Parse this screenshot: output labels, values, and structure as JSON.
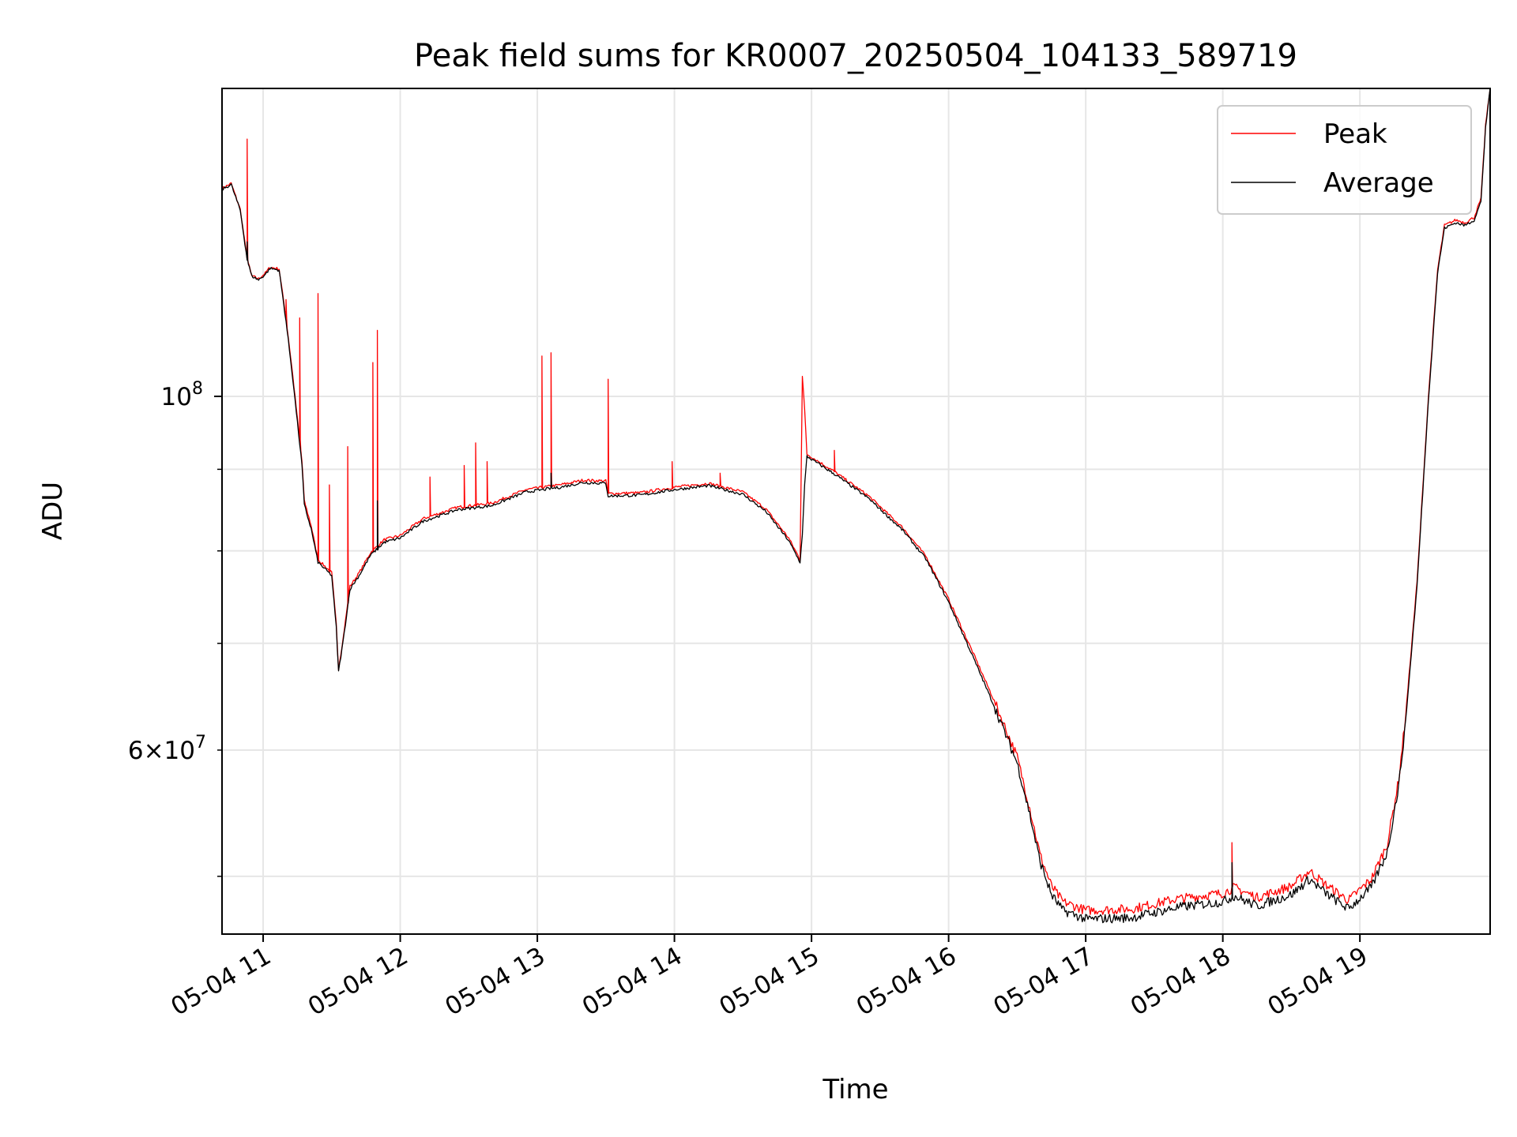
{
  "chart_data": {
    "type": "line",
    "title": "Peak field sums for KR0007_20250504_104133_589719",
    "xlabel": "Time",
    "ylabel": "ADU",
    "x_axis": {
      "kind": "datetime",
      "range": [
        "2025-05-04 10:42",
        "2025-05-04 19:57"
      ],
      "ticks": [
        "05-04 11",
        "05-04 12",
        "05-04 13",
        "05-04 14",
        "05-04 15",
        "05-04 16",
        "05-04 17",
        "05-04 18",
        "05-04 19"
      ]
    },
    "y_axis": {
      "scale": "log",
      "range": [
        46000000,
        156000000
      ],
      "major_ticks": [
        {
          "value": 100000000,
          "label": "10^8"
        }
      ],
      "minor_tick_labels": [
        {
          "value": 60000000,
          "label": "6 × 10^7"
        }
      ],
      "minor_ticks": [
        50000000,
        60000000,
        70000000,
        80000000,
        90000000
      ]
    },
    "grid": true,
    "legend_position": "top-right",
    "series": [
      {
        "name": "Peak",
        "color": "#ff0000",
        "points": [
          [
            "2025-05-04 10:42",
            135000000
          ],
          [
            "2025-05-04 10:46",
            136000000
          ],
          [
            "2025-05-04 10:50",
            131000000
          ],
          [
            "2025-05-04 10:53",
            122000000
          ],
          [
            "2025-05-04 10:55",
            119000000
          ],
          [
            "2025-05-04 10:58",
            118500000
          ],
          [
            "2025-05-04 11:01",
            119500000
          ],
          [
            "2025-05-04 11:03",
            120500000
          ],
          [
            "2025-05-04 11:07",
            120200000
          ],
          [
            "2025-05-04 11:10",
            112000000
          ],
          [
            "2025-05-04 11:13",
            103000000
          ],
          [
            "2025-05-04 11:17",
            91000000
          ],
          [
            "2025-05-04 11:18",
            86000000
          ],
          [
            "2025-05-04 11:21",
            83000000
          ],
          [
            "2025-05-04 11:24",
            79000000
          ],
          [
            "2025-05-04 11:28",
            78000000
          ],
          [
            "2025-05-04 11:30",
            77500000
          ],
          [
            "2025-05-04 11:32",
            72000000
          ],
          [
            "2025-05-04 11:33",
            67500000
          ],
          [
            "2025-05-04 11:35",
            70500000
          ],
          [
            "2025-05-04 11:38",
            76000000
          ],
          [
            "2025-05-04 11:42",
            77500000
          ],
          [
            "2025-05-04 11:47",
            79800000
          ],
          [
            "2025-05-04 11:53",
            81300000
          ],
          [
            "2025-05-04 12:00",
            81800000
          ],
          [
            "2025-05-04 12:10",
            83800000
          ],
          [
            "2025-05-04 12:25",
            85200000
          ],
          [
            "2025-05-04 12:40",
            85700000
          ],
          [
            "2025-05-04 12:55",
            87400000
          ],
          [
            "2025-05-04 13:10",
            88000000
          ],
          [
            "2025-05-04 13:20",
            88600000
          ],
          [
            "2025-05-04 13:30",
            88500000
          ],
          [
            "2025-05-04 13:31",
            86900000
          ],
          [
            "2025-05-04 13:45",
            87000000
          ],
          [
            "2025-05-04 14:00",
            87700000
          ],
          [
            "2025-05-04 14:15",
            88200000
          ],
          [
            "2025-05-04 14:30",
            87100000
          ],
          [
            "2025-05-04 14:40",
            85000000
          ],
          [
            "2025-05-04 14:50",
            81500000
          ],
          [
            "2025-05-04 14:55",
            79000000
          ],
          [
            "2025-05-04 14:56",
            103000000
          ],
          [
            "2025-05-04 14:57",
            98000000
          ],
          [
            "2025-05-04 14:58",
            92000000
          ],
          [
            "2025-05-04 15:10",
            89700000
          ],
          [
            "2025-05-04 15:25",
            86600000
          ],
          [
            "2025-05-04 15:40",
            82700000
          ],
          [
            "2025-05-04 15:50",
            79400000
          ],
          [
            "2025-05-04 16:00",
            74600000
          ],
          [
            "2025-05-04 16:10",
            69400000
          ],
          [
            "2025-05-04 16:20",
            64400000
          ],
          [
            "2025-05-04 16:30",
            59400000
          ],
          [
            "2025-05-04 16:35",
            55600000
          ],
          [
            "2025-05-04 16:40",
            51600000
          ],
          [
            "2025-05-04 16:45",
            49300000
          ],
          [
            "2025-05-04 16:50",
            48200000
          ],
          [
            "2025-05-04 17:00",
            47600000
          ],
          [
            "2025-05-04 17:20",
            47700000
          ],
          [
            "2025-05-04 17:40",
            48400000
          ],
          [
            "2025-05-04 18:00",
            48800000
          ],
          [
            "2025-05-04 18:05",
            49200000
          ],
          [
            "2025-05-04 18:15",
            48500000
          ],
          [
            "2025-05-04 18:30",
            49300000
          ],
          [
            "2025-05-04 18:38",
            50400000
          ],
          [
            "2025-05-04 18:45",
            49400000
          ],
          [
            "2025-05-04 18:55",
            48300000
          ],
          [
            "2025-05-04 19:05",
            49800000
          ],
          [
            "2025-05-04 19:12",
            52400000
          ],
          [
            "2025-05-04 19:17",
            57500000
          ],
          [
            "2025-05-04 19:20",
            63000000
          ],
          [
            "2025-05-04 19:25",
            76500000
          ],
          [
            "2025-05-04 19:30",
            100000000
          ],
          [
            "2025-05-04 19:34",
            120000000
          ],
          [
            "2025-05-04 19:37",
            128000000
          ],
          [
            "2025-05-04 19:42",
            129000000
          ],
          [
            "2025-05-04 19:46",
            128500000
          ],
          [
            "2025-05-04 19:50",
            129500000
          ],
          [
            "2025-05-04 19:53",
            133000000
          ],
          [
            "2025-05-04 19:55",
            148000000
          ],
          [
            "2025-05-04 19:57",
            156000000
          ]
        ],
        "spikes": [
          [
            "2025-05-04 10:53",
            145000000
          ],
          [
            "2025-05-04 11:10",
            115000000
          ],
          [
            "2025-05-04 11:16",
            112000000
          ],
          [
            "2025-05-04 11:24",
            116000000
          ],
          [
            "2025-05-04 11:29",
            88000000
          ],
          [
            "2025-05-04 11:37",
            93000000
          ],
          [
            "2025-05-04 11:48",
            105000000
          ],
          [
            "2025-05-04 11:50",
            110000000
          ],
          [
            "2025-05-04 12:13",
            89000000
          ],
          [
            "2025-05-04 12:28",
            90500000
          ],
          [
            "2025-05-04 12:33",
            93500000
          ],
          [
            "2025-05-04 12:38",
            91000000
          ],
          [
            "2025-05-04 13:02",
            106000000
          ],
          [
            "2025-05-04 13:06",
            106500000
          ],
          [
            "2025-05-04 13:31",
            102500000
          ],
          [
            "2025-05-04 13:59",
            91000000
          ],
          [
            "2025-05-04 14:20",
            89500000
          ],
          [
            "2025-05-04 15:10",
            92500000
          ],
          [
            "2025-05-04 18:04",
            52500000
          ]
        ]
      },
      {
        "name": "Average",
        "color": "#000000",
        "points": [
          [
            "2025-05-04 10:42",
            134800000
          ],
          [
            "2025-05-04 10:46",
            135800000
          ],
          [
            "2025-05-04 10:50",
            130800000
          ],
          [
            "2025-05-04 10:53",
            121800000
          ],
          [
            "2025-05-04 10:55",
            119000000
          ],
          [
            "2025-05-04 10:58",
            118300000
          ],
          [
            "2025-05-04 11:01",
            119300000
          ],
          [
            "2025-05-04 11:03",
            120300000
          ],
          [
            "2025-05-04 11:07",
            120000000
          ],
          [
            "2025-05-04 11:10",
            111500000
          ],
          [
            "2025-05-04 11:13",
            102500000
          ],
          [
            "2025-05-04 11:17",
            90500000
          ],
          [
            "2025-05-04 11:18",
            85500000
          ],
          [
            "2025-05-04 11:21",
            82600000
          ],
          [
            "2025-05-04 11:24",
            78700000
          ],
          [
            "2025-05-04 11:28",
            77700000
          ],
          [
            "2025-05-04 11:30",
            77200000
          ],
          [
            "2025-05-04 11:32",
            71600000
          ],
          [
            "2025-05-04 11:33",
            67200000
          ],
          [
            "2025-05-04 11:35",
            70200000
          ],
          [
            "2025-05-04 11:38",
            75700000
          ],
          [
            "2025-05-04 11:42",
            77200000
          ],
          [
            "2025-05-04 11:47",
            79500000
          ],
          [
            "2025-05-04 11:53",
            81000000
          ],
          [
            "2025-05-04 12:00",
            81500000
          ],
          [
            "2025-05-04 12:10",
            83500000
          ],
          [
            "2025-05-04 12:25",
            84900000
          ],
          [
            "2025-05-04 12:40",
            85400000
          ],
          [
            "2025-05-04 12:55",
            87100000
          ],
          [
            "2025-05-04 13:10",
            87700000
          ],
          [
            "2025-05-04 13:20",
            88300000
          ],
          [
            "2025-05-04 13:30",
            88200000
          ],
          [
            "2025-05-04 13:31",
            86600000
          ],
          [
            "2025-05-04 13:45",
            86700000
          ],
          [
            "2025-05-04 14:00",
            87400000
          ],
          [
            "2025-05-04 14:15",
            87900000
          ],
          [
            "2025-05-04 14:30",
            86800000
          ],
          [
            "2025-05-04 14:40",
            84700000
          ],
          [
            "2025-05-04 14:50",
            81200000
          ],
          [
            "2025-05-04 14:55",
            78700000
          ],
          [
            "2025-05-04 14:56",
            82000000
          ],
          [
            "2025-05-04 14:57",
            88000000
          ],
          [
            "2025-05-04 14:58",
            91700000
          ],
          [
            "2025-05-04 15:10",
            89400000
          ],
          [
            "2025-05-04 15:25",
            86300000
          ],
          [
            "2025-05-04 15:40",
            82400000
          ],
          [
            "2025-05-04 15:50",
            79100000
          ],
          [
            "2025-05-04 16:00",
            74300000
          ],
          [
            "2025-05-04 16:10",
            69000000
          ],
          [
            "2025-05-04 16:20",
            63900000
          ],
          [
            "2025-05-04 16:30",
            58900000
          ],
          [
            "2025-05-04 16:35",
            55100000
          ],
          [
            "2025-05-04 16:40",
            51100000
          ],
          [
            "2025-05-04 16:45",
            48700000
          ],
          [
            "2025-05-04 16:50",
            47600000
          ],
          [
            "2025-05-04 17:00",
            47000000
          ],
          [
            "2025-05-04 17:20",
            47100000
          ],
          [
            "2025-05-04 17:40",
            47800000
          ],
          [
            "2025-05-04 18:00",
            48200000
          ],
          [
            "2025-05-04 18:05",
            48600000
          ],
          [
            "2025-05-04 18:15",
            47900000
          ],
          [
            "2025-05-04 18:30",
            48700000
          ],
          [
            "2025-05-04 18:38",
            49800000
          ],
          [
            "2025-05-04 18:45",
            48800000
          ],
          [
            "2025-05-04 18:55",
            47700000
          ],
          [
            "2025-05-04 19:05",
            49200000
          ],
          [
            "2025-05-04 19:12",
            51800000
          ],
          [
            "2025-05-04 19:17",
            57000000
          ],
          [
            "2025-05-04 19:20",
            62500000
          ],
          [
            "2025-05-04 19:25",
            76000000
          ],
          [
            "2025-05-04 19:30",
            99500000
          ],
          [
            "2025-05-04 19:34",
            119500000
          ],
          [
            "2025-05-04 19:37",
            127500000
          ],
          [
            "2025-05-04 19:42",
            128500000
          ],
          [
            "2025-05-04 19:46",
            128000000
          ],
          [
            "2025-05-04 19:50",
            129000000
          ],
          [
            "2025-05-04 19:53",
            132500000
          ],
          [
            "2025-05-04 19:55",
            147500000
          ],
          [
            "2025-05-04 19:57",
            156000000
          ]
        ],
        "spikes": [
          [
            "2025-05-04 10:53",
            125000000
          ],
          [
            "2025-05-04 11:50",
            86000000
          ],
          [
            "2025-05-04 13:06",
            89500000
          ],
          [
            "2025-05-04 18:04",
            51000000
          ]
        ]
      }
    ]
  }
}
